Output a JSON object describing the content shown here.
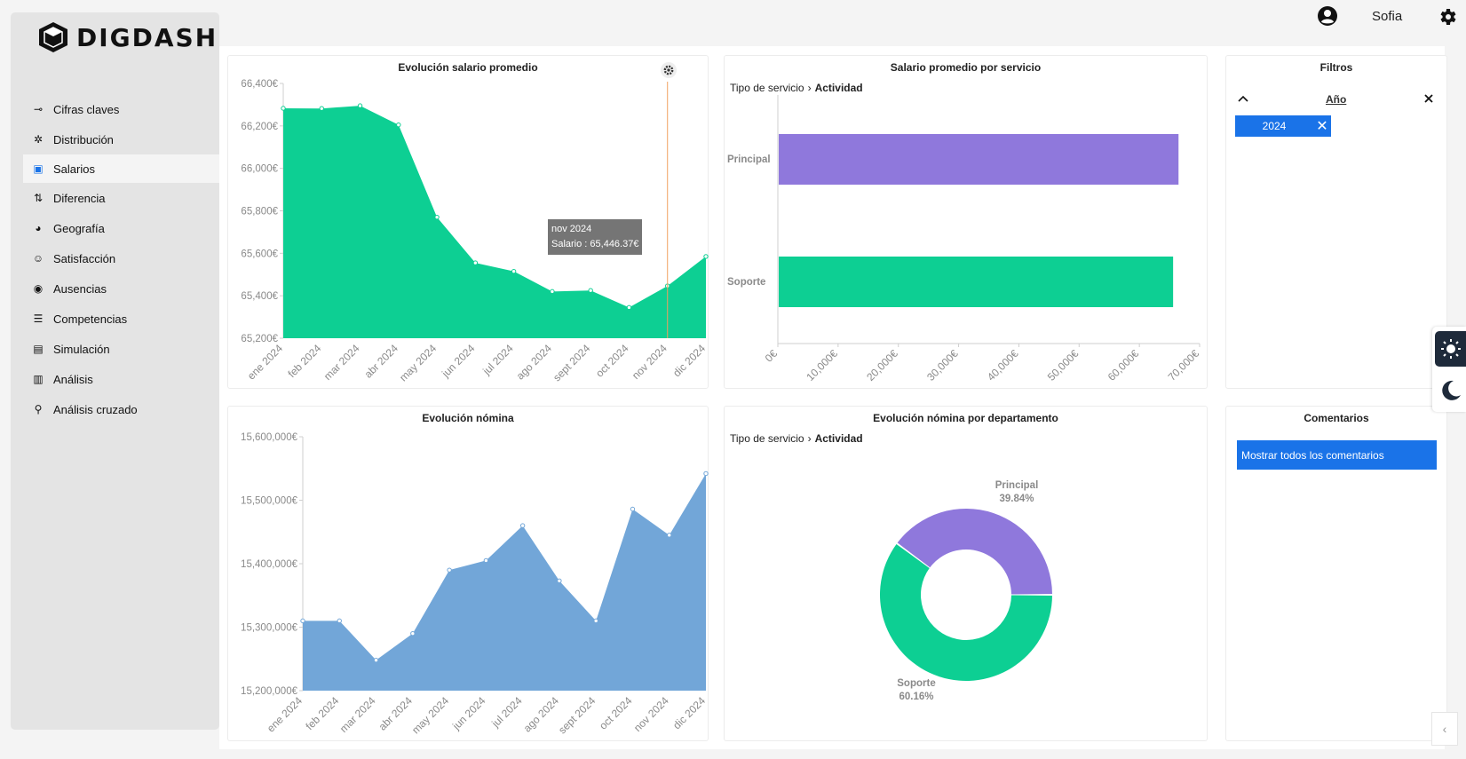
{
  "app": {
    "logo_text": "DIGDASH"
  },
  "topbar": {
    "user_name": "Sofia"
  },
  "sidebar": {
    "items": [
      {
        "label": "Cifras claves",
        "icon": "key-icon"
      },
      {
        "label": "Distribución",
        "icon": "distribution-icon"
      },
      {
        "label": "Salarios",
        "icon": "money-icon",
        "active": true
      },
      {
        "label": "Diferencia",
        "icon": "difference-icon"
      },
      {
        "label": "Geografía",
        "icon": "globe-icon"
      },
      {
        "label": "Satisfacción",
        "icon": "satisfaction-icon"
      },
      {
        "label": "Ausencias",
        "icon": "absence-icon"
      },
      {
        "label": "Competencias",
        "icon": "skills-icon"
      },
      {
        "label": "Simulación",
        "icon": "simulation-icon"
      },
      {
        "label": "Análisis",
        "icon": "bar-chart-icon"
      },
      {
        "label": "Análisis cruzado",
        "icon": "magnifier-icon"
      }
    ]
  },
  "panels": {
    "salary_evolution": {
      "title": "Evolución salario promedio"
    },
    "salary_by_service": {
      "title": "Salario promedio por servicio",
      "breadcrumb": [
        "Tipo de servicio",
        "Actividad"
      ]
    },
    "filters": {
      "title": "Filtros",
      "filter_label": "Año",
      "chip_value": "2024"
    },
    "payroll_evolution": {
      "title": "Evolución nómina"
    },
    "payroll_by_department": {
      "title": "Evolución nómina por departamento",
      "breadcrumb": [
        "Tipo de servicio",
        "Actividad"
      ]
    },
    "comments": {
      "title": "Comentarios",
      "button_label": "Mostrar todos los comentarios"
    }
  },
  "tooltip": {
    "line1": "nov 2024",
    "line2": "Salario : 65,446.37€"
  },
  "colors": {
    "green": "#0dcf93",
    "purple": "#8f78dc",
    "blue_area": "#72a6d8",
    "accent": "#1a73e8"
  },
  "chart_data": [
    {
      "type": "area",
      "title": "Evolución salario promedio",
      "categories": [
        "ene 2024",
        "feb 2024",
        "mar 2024",
        "abr 2024",
        "may 2024",
        "jun 2024",
        "jul 2024",
        "ago 2024",
        "sept 2024",
        "oct 2024",
        "nov 2024",
        "dic 2024"
      ],
      "values": [
        66283,
        66282,
        66295,
        66205,
        65770,
        65555,
        65515,
        65420,
        65425,
        65345,
        65446.37,
        65585
      ],
      "yticks": [
        "65,200€",
        "65,400€",
        "65,600€",
        "65,800€",
        "66,000€",
        "66,200€",
        "66,400€"
      ],
      "ylim": [
        65200,
        66400
      ],
      "color": "#0dcf93"
    },
    {
      "type": "bar",
      "orientation": "horizontal",
      "title": "Salario promedio por servicio",
      "categories": [
        "Principal",
        "Soporte"
      ],
      "values": [
        66500,
        65600
      ],
      "colors": [
        "#8f78dc",
        "#0dcf93"
      ],
      "xticks": [
        "0€",
        "10,000€",
        "20,000€",
        "30,000€",
        "40,000€",
        "50,000€",
        "60,000€",
        "70,000€"
      ],
      "xlim": [
        0,
        70000
      ]
    },
    {
      "type": "area",
      "title": "Evolución nómina",
      "categories": [
        "ene 2024",
        "feb 2024",
        "mar 2024",
        "abr 2024",
        "may 2024",
        "jun 2024",
        "jul 2024",
        "ago 2024",
        "sept 2024",
        "oct 2024",
        "nov 2024",
        "dic 2024"
      ],
      "values": [
        15310000,
        15310000,
        15248000,
        15290000,
        15390000,
        15405000,
        15460000,
        15373000,
        15310000,
        15486000,
        15445000,
        15542000
      ],
      "yticks": [
        "15,200,000€",
        "15,300,000€",
        "15,400,000€",
        "15,500,000€",
        "15,600,000€"
      ],
      "ylim": [
        15200000,
        15600000
      ],
      "color": "#72a6d8"
    },
    {
      "type": "pie",
      "title": "Evolución nómina por departamento",
      "labels": [
        "Principal",
        "Soporte"
      ],
      "values": [
        39.84,
        60.16
      ],
      "value_labels": [
        "39.84%",
        "60.16%"
      ],
      "colors": [
        "#8f78dc",
        "#0dcf93"
      ]
    }
  ]
}
